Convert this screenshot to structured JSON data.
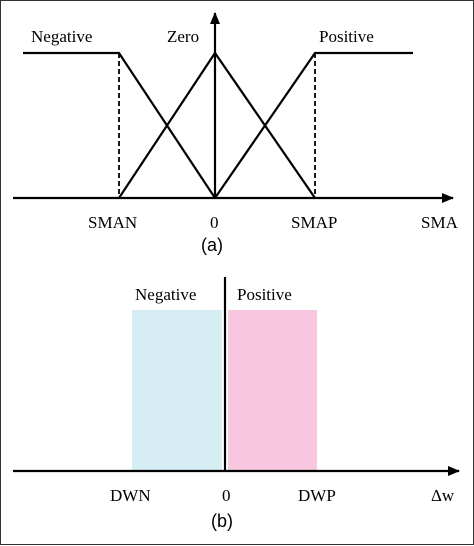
{
  "panel_a": {
    "caption": "(a)",
    "sets": {
      "negative": "Negative",
      "zero": "Zero",
      "positive": "Positive"
    },
    "ticks": {
      "left": "SMAN",
      "center": "0",
      "right": "SMAP"
    },
    "axis_label": "SMA"
  },
  "panel_b": {
    "caption": "(b)",
    "sets": {
      "negative": "Negative",
      "positive": "Positive"
    },
    "ticks": {
      "left": "DWN",
      "center": "0",
      "right": "DWP"
    },
    "axis_label": "Δw",
    "colors": {
      "negative_fill": "#d6edf3",
      "positive_fill": "#f6c7df"
    }
  }
}
